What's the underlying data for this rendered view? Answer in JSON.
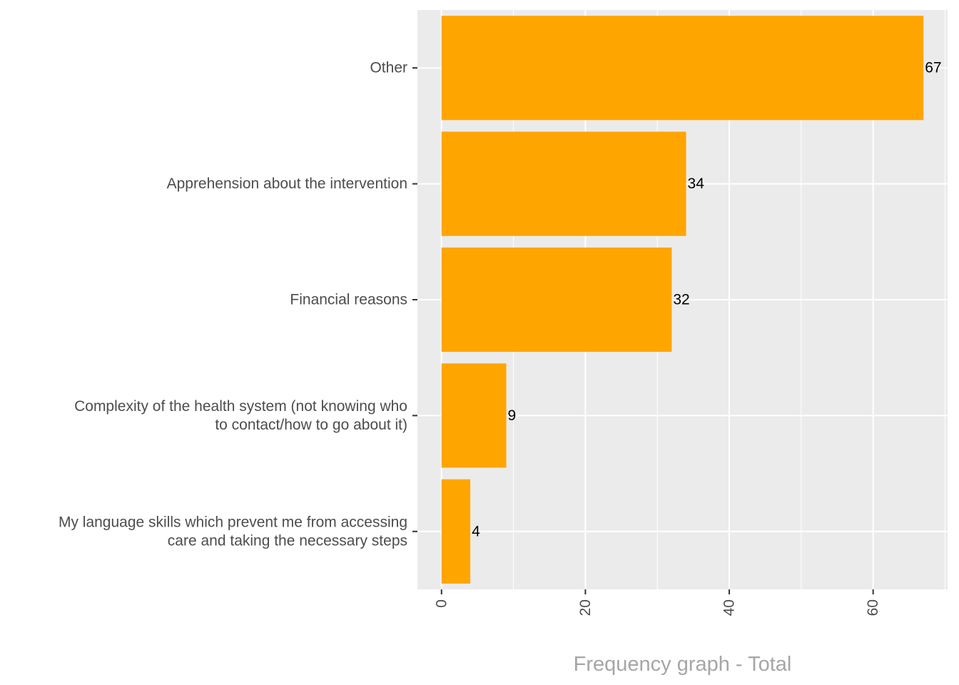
{
  "chart_data": {
    "type": "bar",
    "orientation": "horizontal",
    "categories": [
      [
        "Other"
      ],
      [
        "Apprehension about the intervention"
      ],
      [
        "Financial reasons"
      ],
      [
        "Complexity of the health system (not knowing who",
        "to contact/how to go about it)"
      ],
      [
        "My language skills which prevent me from accessing",
        "care and taking the necessary steps"
      ]
    ],
    "values": [
      67,
      34,
      32,
      9,
      4
    ],
    "data_labels": [
      "67",
      "34",
      "32",
      "9",
      "4"
    ],
    "xlim": [
      -3.35,
      70.35
    ],
    "x_ticks": [
      0,
      20,
      40,
      60
    ],
    "x_tick_labels": [
      "0",
      "20",
      "40",
      "60"
    ],
    "x_minor_ticks": [
      10,
      30,
      50,
      70
    ],
    "title": "",
    "xlabel": "Frequency graph - Total",
    "ylabel": "",
    "grid": true,
    "legend": "none",
    "bar_color": "#FFA500",
    "panel_color": "#EBEBEB"
  }
}
